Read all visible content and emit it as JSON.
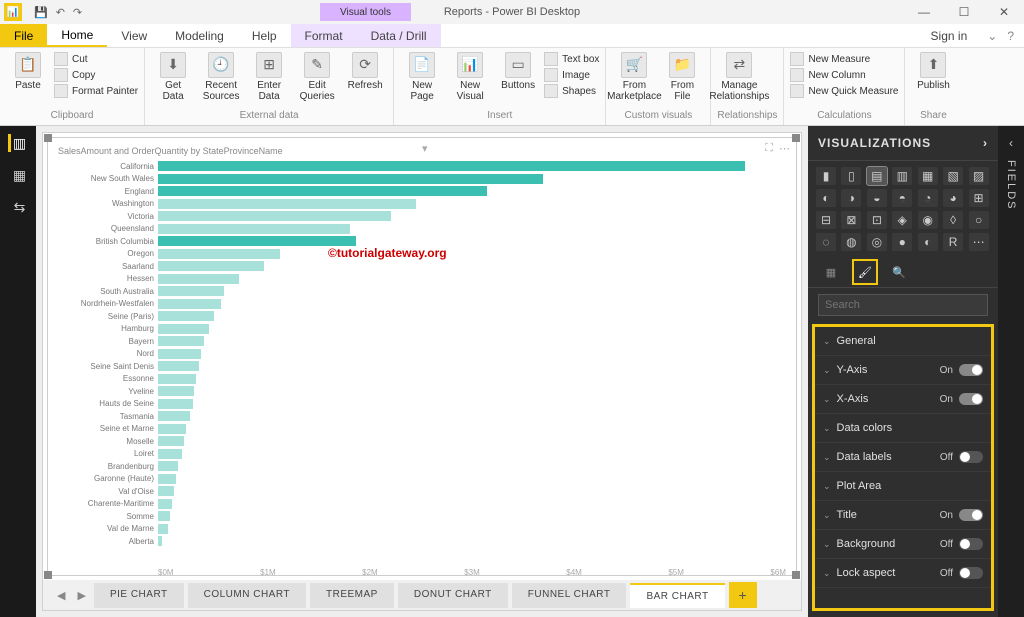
{
  "window": {
    "title": "Reports - Power BI Desktop",
    "contextual_tab_group": "Visual tools"
  },
  "titlebar_controls": {
    "min": "—",
    "max": "☐",
    "close": "✕"
  },
  "menu": {
    "file": "File",
    "tabs": [
      "Home",
      "View",
      "Modeling",
      "Help",
      "Format",
      "Data / Drill"
    ],
    "active": "Home",
    "signin": "Sign in"
  },
  "ribbon": {
    "clipboard": {
      "label": "Clipboard",
      "paste": "Paste",
      "cut": "Cut",
      "copy": "Copy",
      "format_painter": "Format Painter"
    },
    "external": {
      "label": "External data",
      "get_data": "Get\nData",
      "recent": "Recent\nSources",
      "enter": "Enter\nData",
      "edit": "Edit\nQueries",
      "refresh": "Refresh"
    },
    "insert": {
      "label": "Insert",
      "new_page": "New\nPage",
      "new_visual": "New\nVisual",
      "buttons": "Buttons",
      "text_box": "Text box",
      "image": "Image",
      "shapes": "Shapes"
    },
    "custom": {
      "label": "Custom visuals",
      "marketplace": "From\nMarketplace",
      "file": "From\nFile"
    },
    "relationships": {
      "label": "Relationships",
      "manage": "Manage\nRelationships"
    },
    "calculations": {
      "label": "Calculations",
      "new_measure": "New Measure",
      "new_column": "New Column",
      "quick": "New Quick Measure"
    },
    "share": {
      "label": "Share",
      "publish": "Publish"
    }
  },
  "visual": {
    "title": "SalesAmount and OrderQuantity by StateProvinceName",
    "watermark": "©tutorialgateway.org",
    "bar_color_primary": "#3bbfb0",
    "bar_color_light": "#a8e1da",
    "axis_labels": [
      "$0M",
      "$1M",
      "$2M",
      "$3M",
      "$4M",
      "$5M",
      "$6M"
    ],
    "max_value": 6.2,
    "rows": [
      {
        "label": "California",
        "v": 5.8,
        "shade": "p"
      },
      {
        "label": "New South Wales",
        "v": 3.8,
        "shade": "p"
      },
      {
        "label": "England",
        "v": 3.25,
        "shade": "p"
      },
      {
        "label": "Washington",
        "v": 2.55,
        "shade": "l"
      },
      {
        "label": "Victoria",
        "v": 2.3,
        "shade": "l"
      },
      {
        "label": "Queensland",
        "v": 1.9,
        "shade": "l"
      },
      {
        "label": "British Columbia",
        "v": 1.95,
        "shade": "p"
      },
      {
        "label": "Oregon",
        "v": 1.2,
        "shade": "l"
      },
      {
        "label": "Saarland",
        "v": 1.05,
        "shade": "l"
      },
      {
        "label": "Hessen",
        "v": 0.8,
        "shade": "l"
      },
      {
        "label": "South Australia",
        "v": 0.65,
        "shade": "l"
      },
      {
        "label": "Nordrhein-Westfalen",
        "v": 0.62,
        "shade": "l"
      },
      {
        "label": "Seine (Paris)",
        "v": 0.55,
        "shade": "l"
      },
      {
        "label": "Hamburg",
        "v": 0.5,
        "shade": "l"
      },
      {
        "label": "Bayern",
        "v": 0.45,
        "shade": "l"
      },
      {
        "label": "Nord",
        "v": 0.42,
        "shade": "l"
      },
      {
        "label": "Seine Saint Denis",
        "v": 0.4,
        "shade": "l"
      },
      {
        "label": "Essonne",
        "v": 0.38,
        "shade": "l"
      },
      {
        "label": "Yveline",
        "v": 0.36,
        "shade": "l"
      },
      {
        "label": "Hauts de Seine",
        "v": 0.35,
        "shade": "l"
      },
      {
        "label": "Tasmania",
        "v": 0.32,
        "shade": "l"
      },
      {
        "label": "Seine et Marne",
        "v": 0.28,
        "shade": "l"
      },
      {
        "label": "Moselle",
        "v": 0.26,
        "shade": "l"
      },
      {
        "label": "Loiret",
        "v": 0.24,
        "shade": "l"
      },
      {
        "label": "Brandenburg",
        "v": 0.2,
        "shade": "l"
      },
      {
        "label": "Garonne (Haute)",
        "v": 0.18,
        "shade": "l"
      },
      {
        "label": "Val d'Oise",
        "v": 0.16,
        "shade": "l"
      },
      {
        "label": "Charente-Maritime",
        "v": 0.14,
        "shade": "l"
      },
      {
        "label": "Somme",
        "v": 0.12,
        "shade": "l"
      },
      {
        "label": "Val de Marne",
        "v": 0.1,
        "shade": "l"
      },
      {
        "label": "Alberta",
        "v": 0.04,
        "shade": "l"
      }
    ]
  },
  "page_tabs": {
    "tabs": [
      "PIE CHART",
      "COLUMN CHART",
      "TREEMAP",
      "DONUT CHART",
      "FUNNEL CHART",
      "BAR CHART"
    ],
    "active": "BAR CHART"
  },
  "viz_panel": {
    "header": "VISUALIZATIONS",
    "search_placeholder": "Search",
    "format_items": [
      {
        "name": "General",
        "toggle": null
      },
      {
        "name": "Y-Axis",
        "toggle": "On"
      },
      {
        "name": "X-Axis",
        "toggle": "On"
      },
      {
        "name": "Data colors",
        "toggle": null
      },
      {
        "name": "Data labels",
        "toggle": "Off"
      },
      {
        "name": "Plot Area",
        "toggle": null
      },
      {
        "name": "Title",
        "toggle": "On"
      },
      {
        "name": "Background",
        "toggle": "Off"
      },
      {
        "name": "Lock aspect",
        "toggle": "Off"
      }
    ]
  },
  "fields_panel": {
    "label": "FIELDS"
  }
}
